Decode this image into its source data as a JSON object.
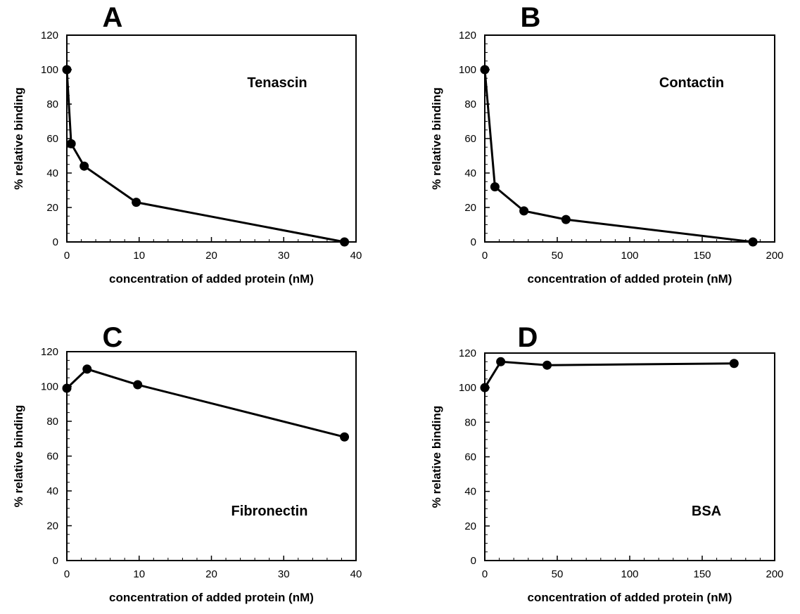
{
  "chart_data": [
    {
      "type": "line",
      "panel_label": "A",
      "annotation": "Tenascin",
      "xlabel": "concentration of added protein (nM)",
      "ylabel": "% relative binding",
      "xlim": [
        0,
        40
      ],
      "ylim": [
        0,
        120
      ],
      "xticks": [
        "0",
        "10",
        "20",
        "30",
        "40"
      ],
      "yticks": [
        "0",
        "20",
        "40",
        "60",
        "80",
        "100",
        "120"
      ],
      "grid": false,
      "series": [
        {
          "x": [
            0,
            0.6,
            2.4,
            9.6,
            38.4
          ],
          "y": [
            100,
            57,
            44,
            23,
            0
          ]
        }
      ]
    },
    {
      "type": "line",
      "panel_label": "B",
      "annotation": "Contactin",
      "xlabel": "concentration of added protein (nM)",
      "ylabel": "% relative binding",
      "xlim": [
        0,
        200
      ],
      "ylim": [
        0,
        120
      ],
      "xticks": [
        "0",
        "50",
        "100",
        "150",
        "200"
      ],
      "yticks": [
        "0",
        "20",
        "40",
        "60",
        "80",
        "100",
        "120"
      ],
      "grid": false,
      "series": [
        {
          "x": [
            0,
            7,
            27,
            56,
            185
          ],
          "y": [
            100,
            32,
            18,
            13,
            0
          ]
        }
      ]
    },
    {
      "type": "line",
      "panel_label": "C",
      "annotation": "Fibronectin",
      "xlabel": "concentration of added protein (nM)",
      "ylabel": "% relative binding",
      "xlim": [
        0,
        40
      ],
      "ylim": [
        0,
        120
      ],
      "xticks": [
        "0",
        "10",
        "20",
        "30",
        "40"
      ],
      "yticks": [
        "0",
        "20",
        "40",
        "60",
        "80",
        "100",
        "120"
      ],
      "grid": false,
      "series": [
        {
          "x": [
            0,
            2.8,
            9.8,
            38.4
          ],
          "y": [
            99,
            110,
            101,
            71
          ]
        }
      ]
    },
    {
      "type": "line",
      "panel_label": "D",
      "annotation": "BSA",
      "xlabel": "concentration of added protein (nM)",
      "ylabel": "% relative binding",
      "xlim": [
        0,
        200
      ],
      "ylim": [
        0,
        120
      ],
      "xticks": [
        "0",
        "50",
        "100",
        "150",
        "200"
      ],
      "yticks": [
        "0",
        "20",
        "40",
        "60",
        "80",
        "100",
        "120"
      ],
      "grid": false,
      "series": [
        {
          "x": [
            0,
            11,
            43,
            172
          ],
          "y": [
            100,
            115,
            113,
            114
          ]
        }
      ]
    }
  ]
}
